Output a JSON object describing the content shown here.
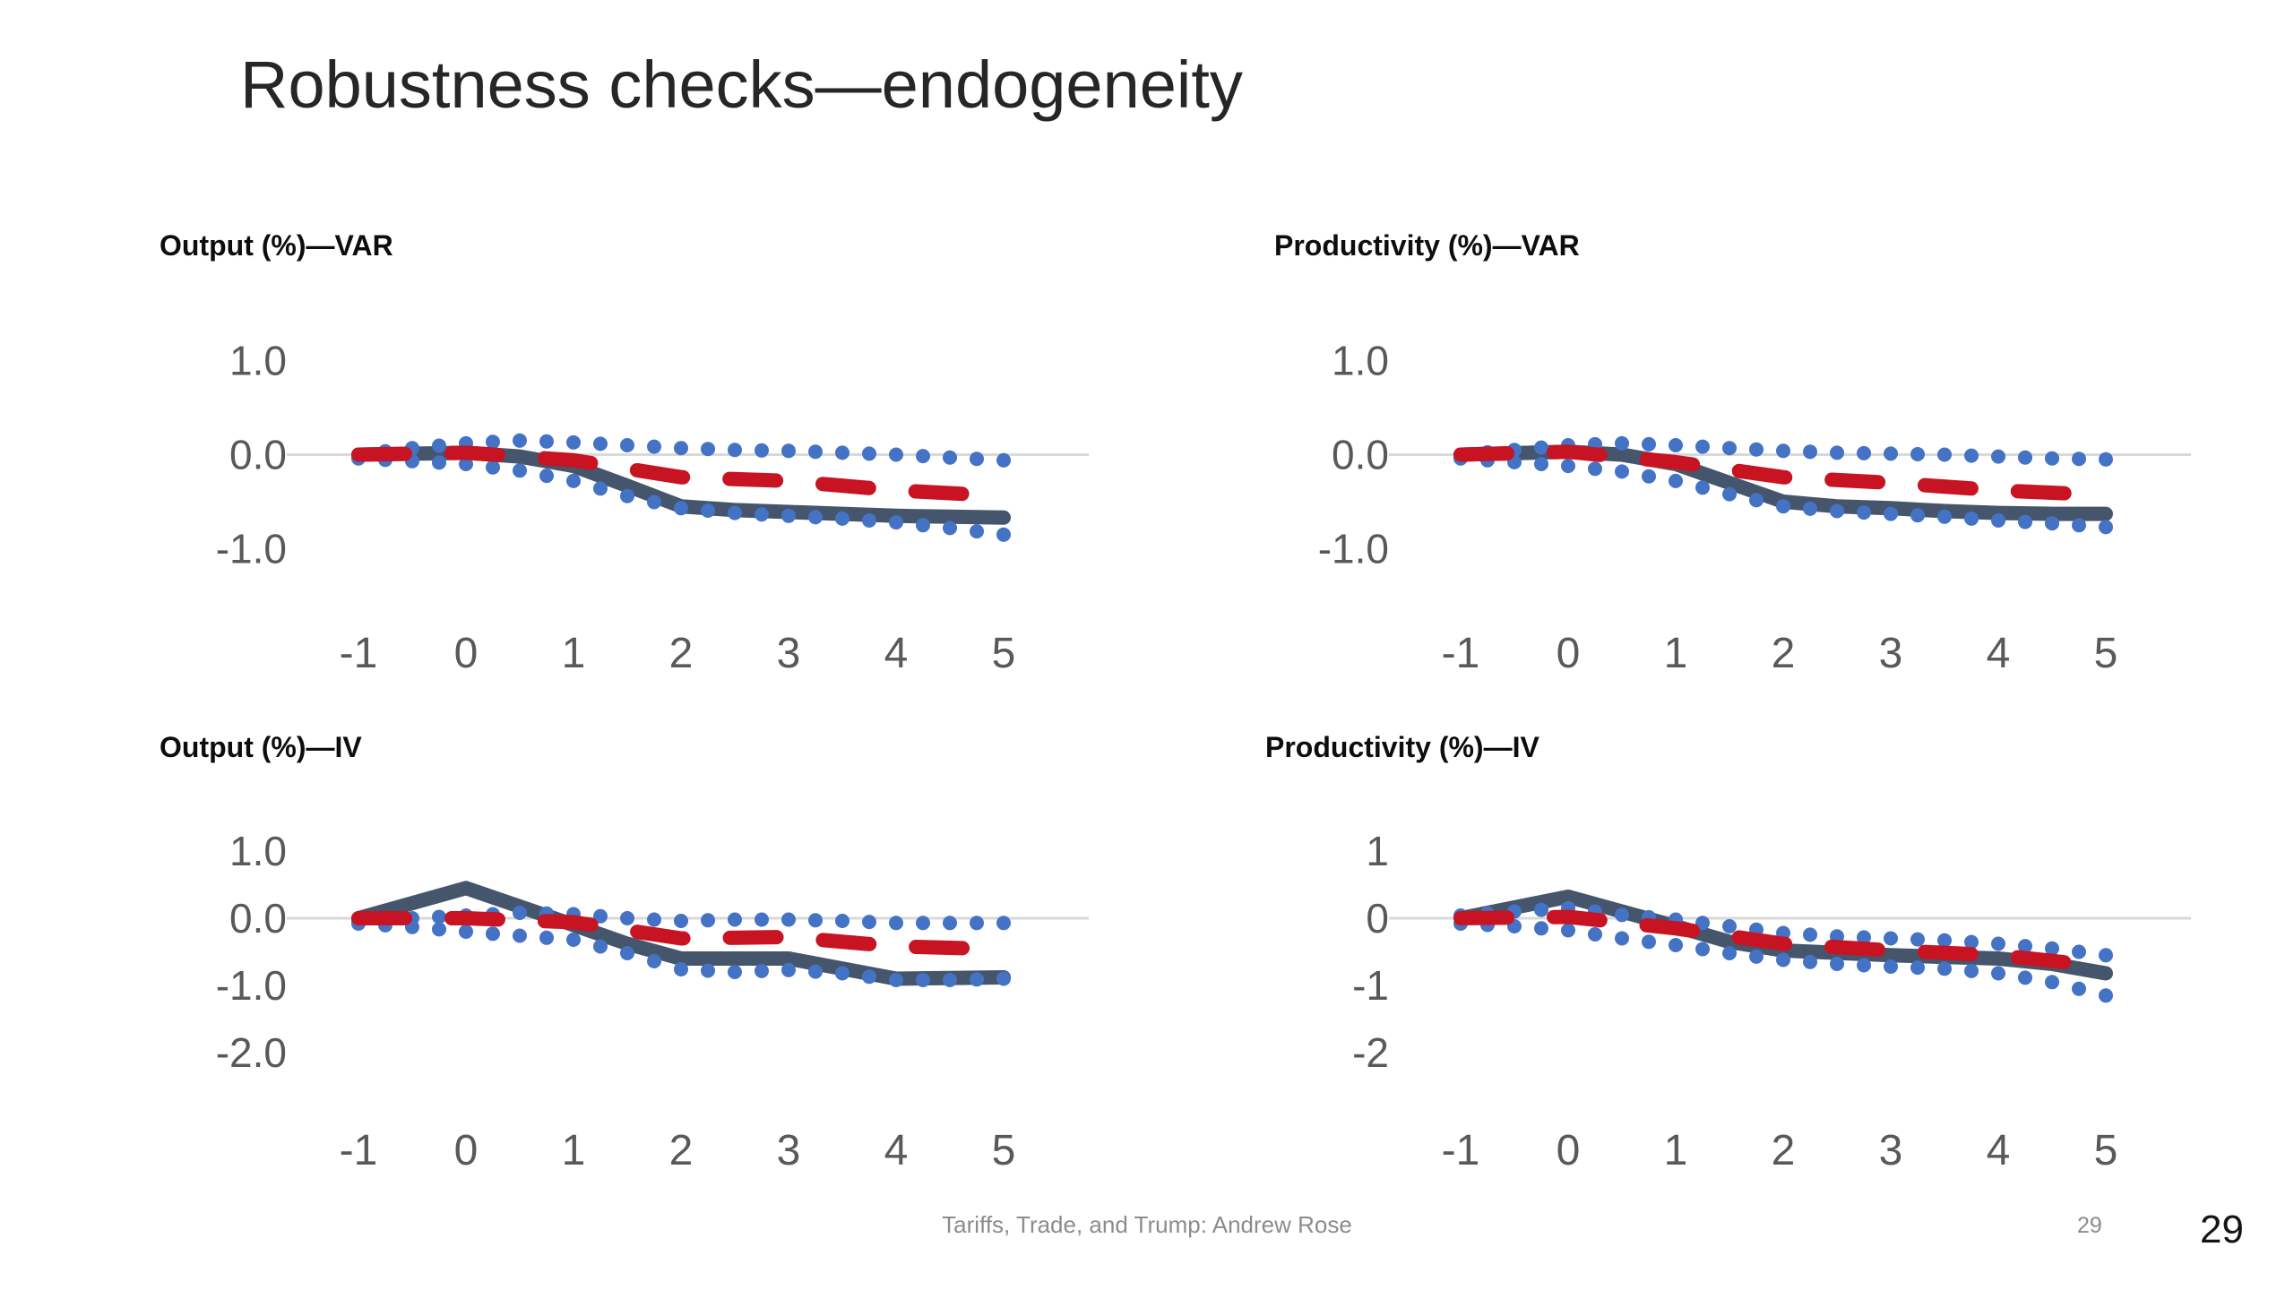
{
  "slide": {
    "title": "Robustness checks—endogeneity"
  },
  "footer": {
    "text": "Tariffs, Trade, and Trump: Andrew Rose",
    "slide_page_number": "29",
    "viewer_page_number": "29"
  },
  "colors": {
    "solid": "#45566c",
    "dashed": "#c81322",
    "dots": "#4472c4",
    "gridline": "#d9d9d9",
    "axis_text": "#595959"
  },
  "chart_data": [
    {
      "type": "line",
      "title": "Output (%)—VAR",
      "x_ticks": [
        -1,
        0,
        1,
        2,
        3,
        4,
        5
      ],
      "y_ticks": [
        "1.0",
        "0.0",
        "-1.0"
      ],
      "ylim": [
        -1.5,
        1.5
      ],
      "grid_y": 0,
      "legend": "none",
      "series": [
        {
          "name": "solid-dark-line",
          "style": "solid",
          "color_key": "solid",
          "points": [
            [
              -1,
              0
            ],
            [
              0,
              0.02
            ],
            [
              0.5,
              -0.02
            ],
            [
              1,
              -0.12
            ],
            [
              1.5,
              -0.33
            ],
            [
              2,
              -0.55
            ],
            [
              2.5,
              -0.59
            ],
            [
              3,
              -0.61
            ],
            [
              3.5,
              -0.63
            ],
            [
              4,
              -0.65
            ],
            [
              4.5,
              -0.66
            ],
            [
              5,
              -0.67
            ]
          ]
        },
        {
          "name": "blue-dotted-upper-band",
          "style": "dots",
          "color_key": "dots",
          "points": [
            [
              -1,
              0
            ],
            [
              -0.5,
              0.07
            ],
            [
              0,
              0.12
            ],
            [
              0.5,
              0.15
            ],
            [
              1,
              0.13
            ],
            [
              1.5,
              0.1
            ],
            [
              2,
              0.07
            ],
            [
              2.5,
              0.05
            ],
            [
              3,
              0.04
            ],
            [
              3.5,
              0.02
            ],
            [
              4,
              0
            ],
            [
              4.5,
              -0.03
            ],
            [
              5,
              -0.06
            ]
          ]
        },
        {
          "name": "blue-dotted-lower-band",
          "style": "dots",
          "color_key": "dots",
          "points": [
            [
              -1,
              -0.04
            ],
            [
              -0.5,
              -0.07
            ],
            [
              0,
              -0.1
            ],
            [
              0.5,
              -0.17
            ],
            [
              1,
              -0.28
            ],
            [
              1.5,
              -0.44
            ],
            [
              2,
              -0.57
            ],
            [
              2.5,
              -0.62
            ],
            [
              3,
              -0.65
            ],
            [
              3.5,
              -0.68
            ],
            [
              4,
              -0.72
            ],
            [
              4.5,
              -0.78
            ],
            [
              5,
              -0.85
            ]
          ]
        },
        {
          "name": "red-dashed-line",
          "style": "dashed",
          "color_key": "dashed",
          "points": [
            [
              -1,
              0
            ],
            [
              0,
              0.02
            ],
            [
              1,
              -0.06
            ],
            [
              2,
              -0.24
            ],
            [
              3,
              -0.28
            ],
            [
              4,
              -0.38
            ],
            [
              5,
              -0.44
            ]
          ]
        }
      ]
    },
    {
      "type": "line",
      "title": "Productivity (%)—VAR",
      "x_ticks": [
        -1,
        0,
        1,
        2,
        3,
        4,
        5
      ],
      "y_ticks": [
        "1.0",
        "0.0",
        "-1.0"
      ],
      "ylim": [
        -1.5,
        1.5
      ],
      "grid_y": 0,
      "legend": "none",
      "series": [
        {
          "name": "solid-dark-line",
          "style": "solid",
          "color_key": "solid",
          "points": [
            [
              -1,
              0
            ],
            [
              0,
              0.03
            ],
            [
              0.5,
              0
            ],
            [
              1,
              -0.1
            ],
            [
              1.5,
              -0.3
            ],
            [
              2,
              -0.5
            ],
            [
              2.5,
              -0.55
            ],
            [
              3,
              -0.57
            ],
            [
              3.5,
              -0.6
            ],
            [
              4,
              -0.62
            ],
            [
              4.5,
              -0.63
            ],
            [
              5,
              -0.63
            ]
          ]
        },
        {
          "name": "blue-dotted-upper-band",
          "style": "dots",
          "color_key": "dots",
          "points": [
            [
              -1,
              0
            ],
            [
              -0.5,
              0.05
            ],
            [
              0,
              0.1
            ],
            [
              0.5,
              0.12
            ],
            [
              1,
              0.1
            ],
            [
              1.5,
              0.07
            ],
            [
              2,
              0.04
            ],
            [
              2.5,
              0.02
            ],
            [
              3,
              0.01
            ],
            [
              3.5,
              0
            ],
            [
              4,
              -0.02
            ],
            [
              4.5,
              -0.04
            ],
            [
              5,
              -0.05
            ]
          ]
        },
        {
          "name": "blue-dotted-lower-band",
          "style": "dots",
          "color_key": "dots",
          "points": [
            [
              -1,
              -0.04
            ],
            [
              -0.5,
              -0.08
            ],
            [
              0,
              -0.12
            ],
            [
              0.5,
              -0.18
            ],
            [
              1,
              -0.28
            ],
            [
              1.5,
              -0.42
            ],
            [
              2,
              -0.55
            ],
            [
              2.5,
              -0.6
            ],
            [
              3,
              -0.63
            ],
            [
              3.5,
              -0.66
            ],
            [
              4,
              -0.7
            ],
            [
              4.5,
              -0.73
            ],
            [
              5,
              -0.77
            ]
          ]
        },
        {
          "name": "red-dashed-line",
          "style": "dashed",
          "color_key": "dashed",
          "points": [
            [
              -1,
              0
            ],
            [
              0,
              0.03
            ],
            [
              1,
              -0.08
            ],
            [
              2,
              -0.24
            ],
            [
              3,
              -0.3
            ],
            [
              4,
              -0.38
            ],
            [
              5,
              -0.43
            ]
          ]
        }
      ]
    },
    {
      "type": "line",
      "title": "Output (%)—IV",
      "x_ticks": [
        -1,
        0,
        1,
        2,
        3,
        4,
        5
      ],
      "y_ticks": [
        "1.0",
        "0.0",
        "-1.0",
        "-2.0"
      ],
      "ylim": [
        -2.6,
        1.6
      ],
      "grid_y": 0,
      "legend": "none",
      "series": [
        {
          "name": "solid-dark-line",
          "style": "solid",
          "color_key": "solid",
          "points": [
            [
              -1,
              0
            ],
            [
              0,
              0.45
            ],
            [
              1,
              -0.1
            ],
            [
              1.5,
              -0.38
            ],
            [
              2,
              -0.6
            ],
            [
              3,
              -0.6
            ],
            [
              4,
              -0.9
            ],
            [
              5,
              -0.88
            ]
          ]
        },
        {
          "name": "blue-dotted-upper-band",
          "style": "dots",
          "color_key": "dots",
          "points": [
            [
              -1,
              -0.03
            ],
            [
              -0.5,
              0
            ],
            [
              0,
              0.04
            ],
            [
              0.5,
              0.08
            ],
            [
              1,
              0.06
            ],
            [
              1.5,
              0
            ],
            [
              2,
              -0.04
            ],
            [
              2.5,
              -0.02
            ],
            [
              3,
              -0.02
            ],
            [
              3.5,
              -0.04
            ],
            [
              4,
              -0.07
            ],
            [
              4.5,
              -0.07
            ],
            [
              5,
              -0.07
            ]
          ]
        },
        {
          "name": "blue-dotted-lower-band",
          "style": "dots",
          "color_key": "dots",
          "points": [
            [
              -1,
              -0.08
            ],
            [
              -0.5,
              -0.13
            ],
            [
              0,
              -0.2
            ],
            [
              0.5,
              -0.26
            ],
            [
              1,
              -0.32
            ],
            [
              1.5,
              -0.52
            ],
            [
              2,
              -0.76
            ],
            [
              2.5,
              -0.8
            ],
            [
              3,
              -0.77
            ],
            [
              3.5,
              -0.82
            ],
            [
              4,
              -0.92
            ],
            [
              4.5,
              -0.92
            ],
            [
              5,
              -0.9
            ]
          ]
        },
        {
          "name": "red-dashed-line",
          "style": "dashed",
          "color_key": "dashed",
          "points": [
            [
              -1,
              0
            ],
            [
              0,
              0
            ],
            [
              1,
              -0.06
            ],
            [
              2,
              -0.3
            ],
            [
              3,
              -0.28
            ],
            [
              4,
              -0.42
            ],
            [
              5,
              -0.46
            ]
          ]
        }
      ]
    },
    {
      "type": "line",
      "title": "Productivity (%)—IV",
      "x_ticks": [
        -1,
        0,
        1,
        2,
        3,
        4,
        5
      ],
      "y_ticks": [
        "1",
        "0",
        "-1",
        "-2"
      ],
      "ylim": [
        -2.6,
        1.6
      ],
      "grid_y": 0,
      "legend": "none",
      "series": [
        {
          "name": "solid-dark-line",
          "style": "solid",
          "color_key": "solid",
          "points": [
            [
              -1,
              0
            ],
            [
              0,
              0.32
            ],
            [
              1,
              -0.12
            ],
            [
              1.5,
              -0.35
            ],
            [
              2,
              -0.48
            ],
            [
              3,
              -0.55
            ],
            [
              4,
              -0.6
            ],
            [
              4.5,
              -0.68
            ],
            [
              5,
              -0.82
            ]
          ]
        },
        {
          "name": "blue-dotted-upper-band",
          "style": "dots",
          "color_key": "dots",
          "points": [
            [
              -1,
              0.04
            ],
            [
              -0.5,
              0.1
            ],
            [
              0,
              0.15
            ],
            [
              0.5,
              0.05
            ],
            [
              1,
              -0.02
            ],
            [
              1.5,
              -0.12
            ],
            [
              2,
              -0.22
            ],
            [
              2.5,
              -0.27
            ],
            [
              3,
              -0.3
            ],
            [
              3.5,
              -0.33
            ],
            [
              4,
              -0.38
            ],
            [
              4.5,
              -0.45
            ],
            [
              5,
              -0.55
            ]
          ]
        },
        {
          "name": "blue-dotted-lower-band",
          "style": "dots",
          "color_key": "dots",
          "points": [
            [
              -1,
              -0.08
            ],
            [
              -0.5,
              -0.12
            ],
            [
              0,
              -0.18
            ],
            [
              0.5,
              -0.3
            ],
            [
              1,
              -0.4
            ],
            [
              1.5,
              -0.52
            ],
            [
              2,
              -0.62
            ],
            [
              2.5,
              -0.68
            ],
            [
              3,
              -0.72
            ],
            [
              3.5,
              -0.75
            ],
            [
              4,
              -0.82
            ],
            [
              4.5,
              -0.95
            ],
            [
              5,
              -1.15
            ]
          ]
        },
        {
          "name": "red-dashed-line",
          "style": "dashed",
          "color_key": "dashed",
          "points": [
            [
              -1,
              0
            ],
            [
              0,
              0.02
            ],
            [
              1,
              -0.15
            ],
            [
              2,
              -0.38
            ],
            [
              3,
              -0.48
            ],
            [
              4,
              -0.55
            ],
            [
              5,
              -0.72
            ]
          ]
        }
      ]
    }
  ]
}
